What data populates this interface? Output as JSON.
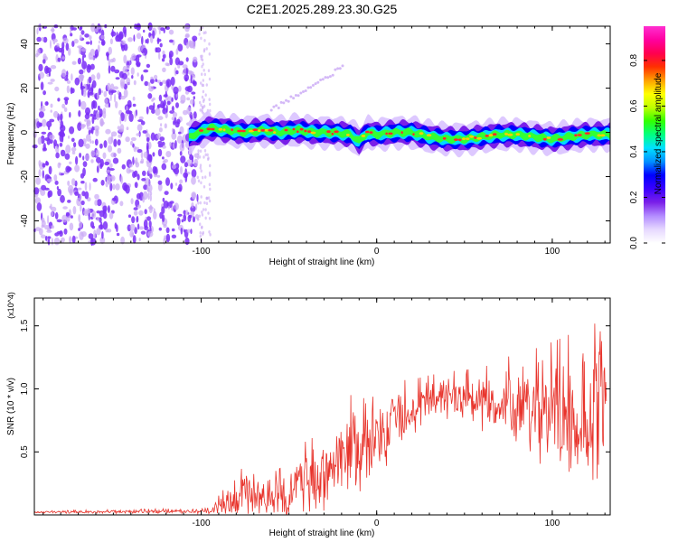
{
  "title": "C2E1.2025.289.23.30.G25",
  "colors": {
    "trace": "#e8342c",
    "frame": "#000000",
    "scatter": "#7b2ff7",
    "scatter_light": "#c9a8f5"
  },
  "chart_data": [
    {
      "type": "heatmap",
      "name": "spectrogram",
      "xlabel": "Height of straight line (km)",
      "ylabel": "Frequency (Hz)",
      "xlim": [
        -195,
        133
      ],
      "ylim": [
        -50,
        48
      ],
      "xticks": [
        -100,
        0,
        100
      ],
      "xtick_labels": [
        "-100",
        "0",
        "100"
      ],
      "yticks": [
        -40,
        -20,
        0,
        20,
        40
      ],
      "ytick_labels": [
        "-40",
        "-20",
        "0",
        "20",
        "40"
      ],
      "colorbar": {
        "label": "Normalized spectral amplitude",
        "range": [
          0,
          0.95
        ],
        "ticks": [
          0,
          0.2,
          0.4,
          0.6,
          0.8
        ],
        "tick_labels": [
          "0.0",
          "0.2",
          "0.4",
          "0.6",
          "0.8"
        ],
        "colormap": [
          "#ffffff",
          "#e6d8ff",
          "#b38cff",
          "#7a1fe8",
          "#3a00ff",
          "#0000ff",
          "#0090ff",
          "#00e0ff",
          "#00ff80",
          "#33ff00",
          "#bfff00",
          "#ffff00",
          "#ffa000",
          "#ff3000",
          "#ff0050",
          "#ff00a0",
          "#ff2fd0"
        ]
      },
      "band": {
        "x": [
          -107,
          -95,
          -85,
          -75,
          -65,
          -55,
          -45,
          -35,
          -25,
          -15,
          -10,
          -5,
          0,
          10,
          20,
          30,
          40,
          50,
          60,
          70,
          80,
          90,
          100,
          110,
          120,
          130
        ],
        "center_hz": [
          -2,
          2,
          1,
          0,
          1,
          0,
          1,
          0,
          0,
          -1,
          -4,
          0,
          -1,
          0,
          0,
          -2,
          -3,
          -3,
          -2,
          -1,
          -1,
          -2,
          -3,
          -2,
          -1,
          -1
        ]
      }
    },
    {
      "type": "line",
      "name": "snr",
      "xlabel": "Height of straight line (km)",
      "ylabel": "SNR (10 * v/v)",
      "y_multiplier": "(x10^4)",
      "xlim": [
        -195,
        133
      ],
      "ylim": [
        0,
        1.72
      ],
      "xticks": [
        -100,
        0,
        100
      ],
      "xtick_labels": [
        "-100",
        "0",
        "100"
      ],
      "yticks": [
        0.5,
        1.0,
        1.5
      ],
      "ytick_labels": [
        "0.5",
        "1.0",
        "1.5"
      ],
      "envelope": {
        "x": [
          -195,
          -100,
          -92,
          -80,
          -70,
          -60,
          -50,
          -40,
          -30,
          -20,
          -10,
          0,
          10,
          20,
          30,
          40,
          50,
          60,
          70,
          80,
          90,
          100,
          110,
          120,
          125,
          130
        ],
        "mean": [
          0.02,
          0.03,
          0.05,
          0.12,
          0.17,
          0.12,
          0.16,
          0.27,
          0.3,
          0.48,
          0.52,
          0.62,
          0.72,
          0.82,
          0.9,
          0.93,
          0.92,
          0.88,
          0.88,
          0.85,
          0.8,
          0.82,
          0.8,
          0.8,
          0.85,
          0.75
        ],
        "amp": [
          0.01,
          0.02,
          0.06,
          0.18,
          0.25,
          0.18,
          0.22,
          0.28,
          0.3,
          0.38,
          0.4,
          0.35,
          0.3,
          0.22,
          0.18,
          0.18,
          0.2,
          0.25,
          0.3,
          0.38,
          0.45,
          0.48,
          0.55,
          0.6,
          0.8,
          0.7
        ]
      }
    }
  ]
}
